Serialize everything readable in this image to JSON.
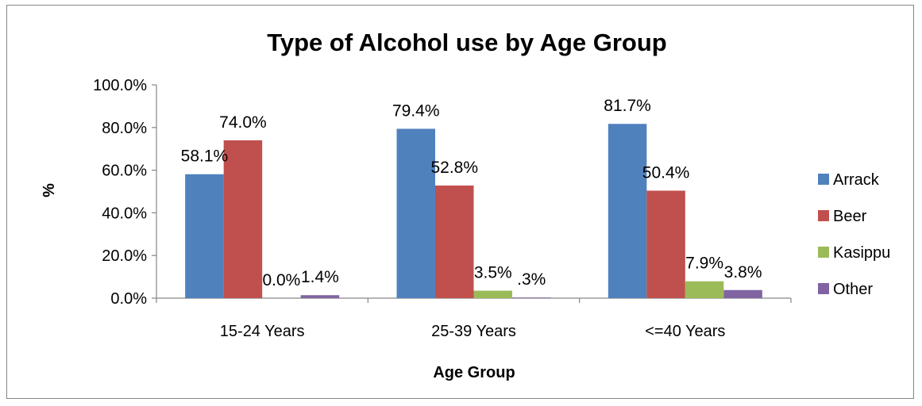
{
  "chart_data": {
    "type": "bar",
    "title": "Type of Alcohol use by Age Group",
    "xlabel": "Age Group",
    "ylabel": "%",
    "ylim": [
      0,
      100
    ],
    "yticks": [
      "0.0%",
      "20.0%",
      "40.0%",
      "60.0%",
      "80.0%",
      "100.0%"
    ],
    "ytick_values": [
      0,
      20,
      40,
      60,
      80,
      100
    ],
    "categories": [
      "15-24 Years",
      "25-39 Years",
      "<=40 Years"
    ],
    "legend_position": "right",
    "grid": false,
    "series": [
      {
        "name": "Arrack",
        "color": "#4f81bd",
        "values": [
          58.1,
          79.4,
          81.7
        ],
        "labels": [
          "58.1%",
          "79.4%",
          "81.7%"
        ]
      },
      {
        "name": "Beer",
        "color": "#c0504d",
        "values": [
          74.0,
          52.8,
          50.4
        ],
        "labels": [
          "74.0%",
          "52.8%",
          "50.4%"
        ]
      },
      {
        "name": "Kasippu",
        "color": "#9bbb59",
        "values": [
          0.0,
          3.5,
          7.9
        ],
        "labels": [
          "0.0%",
          "3.5%",
          "7.9%"
        ]
      },
      {
        "name": "Other",
        "color": "#8064a2",
        "values": [
          1.4,
          0.3,
          3.8
        ],
        "labels": [
          "1.4%",
          ".3%",
          "3.8%"
        ]
      }
    ]
  }
}
